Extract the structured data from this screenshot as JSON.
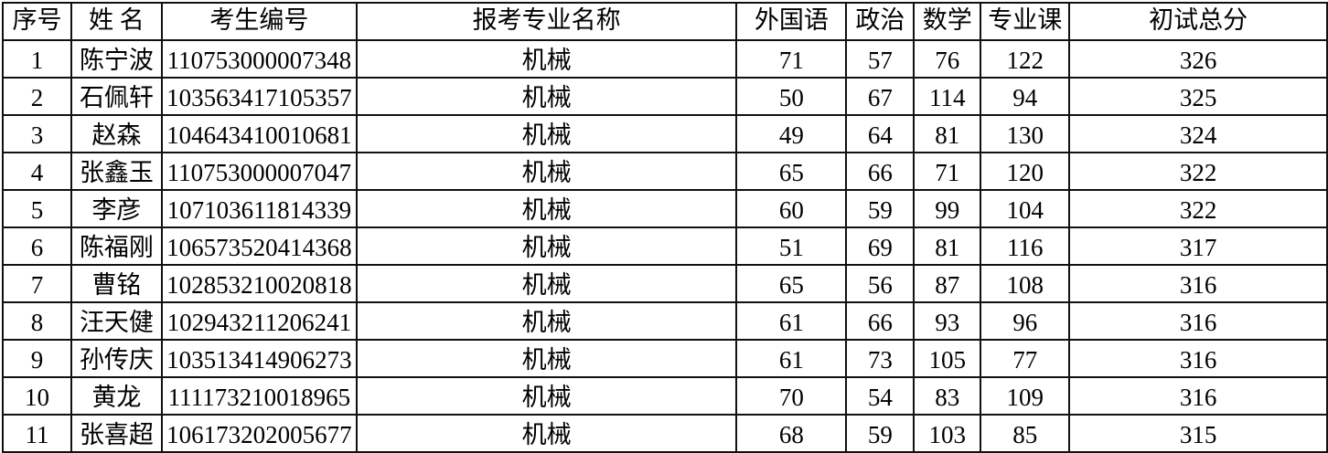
{
  "table": {
    "headers": [
      "序号",
      "姓 名",
      "考生编号",
      "报考专业名称",
      "外国语",
      "政治",
      "数学",
      "专业课",
      "初试总分"
    ],
    "rows": [
      [
        "1",
        "陈宁波",
        "110753000007348",
        "机械",
        "71",
        "57",
        "76",
        "122",
        "326"
      ],
      [
        "2",
        "石佩轩",
        "103563417105357",
        "机械",
        "50",
        "67",
        "114",
        "94",
        "325"
      ],
      [
        "3",
        "赵森",
        "104643410010681",
        "机械",
        "49",
        "64",
        "81",
        "130",
        "324"
      ],
      [
        "4",
        "张鑫玉",
        "110753000007047",
        "机械",
        "65",
        "66",
        "71",
        "120",
        "322"
      ],
      [
        "5",
        "李彦",
        "107103611814339",
        "机械",
        "60",
        "59",
        "99",
        "104",
        "322"
      ],
      [
        "6",
        "陈福刚",
        "106573520414368",
        "机械",
        "51",
        "69",
        "81",
        "116",
        "317"
      ],
      [
        "7",
        "曹铭",
        "102853210020818",
        "机械",
        "65",
        "56",
        "87",
        "108",
        "316"
      ],
      [
        "8",
        "汪天健",
        "102943211206241",
        "机械",
        "61",
        "66",
        "93",
        "96",
        "316"
      ],
      [
        "9",
        "孙传庆",
        "103513414906273",
        "机械",
        "61",
        "73",
        "105",
        "77",
        "316"
      ],
      [
        "10",
        "黄龙",
        "111173210018965",
        "机械",
        "70",
        "54",
        "83",
        "109",
        "316"
      ],
      [
        "11",
        "张喜超",
        "106173202005677",
        "机械",
        "68",
        "59",
        "103",
        "85",
        "315"
      ]
    ]
  }
}
